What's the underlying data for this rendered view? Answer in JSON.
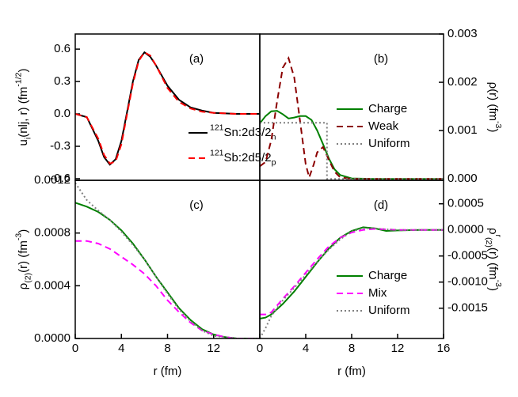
{
  "chart_data": [
    {
      "type": "line",
      "panel_label": "(a)",
      "axis_side": "left",
      "legend": "lower right",
      "xlim": [
        0,
        16
      ],
      "ylim": [
        -0.615,
        0.74
      ],
      "yticks": [
        0.6,
        0.3,
        {
          "value": 0,
          "label": "0.0"
        },
        -0.3,
        -0.6
      ],
      "ylabel": [
        {
          "text": "u"
        },
        {
          "text": "i",
          "script": "sub"
        },
        {
          "text": "(nlj, r) (fm"
        },
        {
          "text": "-1/2",
          "script": "sup"
        },
        {
          "text": ")"
        }
      ],
      "series": [
        {
          "name": [
            {
              "text": "121",
              "script": "sup"
            },
            {
              "text": "Sn:2d3/2"
            },
            {
              "text": "n",
              "script": "sub"
            }
          ],
          "color": "#000000",
          "dash": "solid",
          "x": [
            0,
            1,
            2,
            2.5,
            3,
            3.5,
            4,
            4.5,
            5,
            5.5,
            6,
            6.5,
            7,
            8,
            9,
            10,
            11,
            12,
            14,
            16
          ],
          "values": [
            0,
            -0.03,
            -0.25,
            -0.4,
            -0.47,
            -0.42,
            -0.25,
            0.02,
            0.3,
            0.5,
            0.57,
            0.53,
            0.45,
            0.26,
            0.13,
            0.06,
            0.03,
            0.01,
            0,
            0
          ]
        },
        {
          "name": [
            {
              "text": "121",
              "script": "sup"
            },
            {
              "text": "Sb:2d5/2"
            },
            {
              "text": "p",
              "script": "sub"
            }
          ],
          "color": "#ff0000",
          "dash": "dashed",
          "x": [
            0,
            1,
            2,
            2.5,
            3,
            3.5,
            4,
            4.5,
            5,
            5.5,
            6,
            6.5,
            7,
            8,
            9,
            10,
            11,
            12,
            14,
            16
          ],
          "values": [
            0,
            -0.03,
            -0.23,
            -0.38,
            -0.46,
            -0.44,
            -0.28,
            0,
            0.28,
            0.49,
            0.57,
            0.54,
            0.45,
            0.24,
            0.11,
            0.05,
            0.02,
            0.01,
            0,
            0
          ]
        }
      ]
    },
    {
      "type": "line",
      "panel_label": "(b)",
      "axis_side": "right",
      "legend": "center right",
      "xlim": [
        0,
        16
      ],
      "ylim": [
        -3e-05,
        0.003
      ],
      "yticks": [
        {
          "value": 0,
          "label": "0.000"
        },
        {
          "value": 0.001,
          "label": "0.001"
        },
        {
          "value": 0.002,
          "label": "0.002"
        },
        {
          "value": 0.003,
          "label": "0.003"
        }
      ],
      "ylabel": [
        {
          "text": "ρ(r) (fm"
        },
        {
          "text": "-3",
          "script": "sup"
        },
        {
          "text": ")"
        }
      ],
      "series": [
        {
          "name": "Charge",
          "color": "#008000",
          "dash": "solid",
          "x": [
            0,
            0.5,
            1,
            1.5,
            2,
            2.5,
            3,
            3.5,
            4,
            4.5,
            5,
            5.5,
            6,
            6.5,
            7,
            8,
            10,
            16
          ],
          "values": [
            0.00115,
            0.0013,
            0.0014,
            0.00141,
            0.00134,
            0.00125,
            0.00127,
            0.0013,
            0.0013,
            0.00122,
            0.001,
            0.00072,
            0.00043,
            0.0002,
            8e-05,
            1e-05,
            0,
            0
          ]
        },
        {
          "name": "Weak",
          "color": "#8b0000",
          "dash": "dashed",
          "x": [
            0,
            0.5,
            1,
            1.5,
            2,
            2.5,
            3,
            3.5,
            4,
            4.3,
            4.7,
            5,
            5.5,
            6,
            6.5,
            7,
            8,
            16
          ],
          "values": [
            0.00026,
            0.00035,
            0.0008,
            0.0016,
            0.0023,
            0.0025,
            0.0021,
            0.0012,
            0.0003,
            3e-05,
            0.0003,
            0.00055,
            0.00066,
            0.0004,
            0.00015,
            3e-05,
            0,
            0
          ]
        },
        {
          "name": "Uniform",
          "color": "#808080",
          "dash": "dotted",
          "x": [
            0,
            5.85,
            5.85,
            16
          ],
          "values": [
            0.00116,
            0.00116,
            0,
            0
          ]
        }
      ]
    },
    {
      "type": "line",
      "panel_label": "(c)",
      "axis_side": "left",
      "xlabel": "r (fm)",
      "xlim": [
        0,
        16
      ],
      "xticks": [
        0,
        4,
        8,
        12
      ],
      "ylim": [
        0,
        0.0012
      ],
      "yticks": [
        {
          "value": 0,
          "label": "0.0000"
        },
        {
          "value": 0.0004,
          "label": "0.0004"
        },
        {
          "value": 0.0008,
          "label": "0.0008"
        },
        {
          "value": 0.0012,
          "label": "0.0012"
        }
      ],
      "ylabel": [
        {
          "text": "ρ"
        },
        {
          "text": "(2)",
          "script": "sub"
        },
        {
          "text": "(r) (fm"
        },
        {
          "text": "-3",
          "script": "sup"
        },
        {
          "text": ")"
        }
      ],
      "series": [
        {
          "color": "#008000",
          "dash": "solid",
          "x": [
            0,
            1,
            2,
            3,
            4,
            5,
            6,
            7,
            8,
            9,
            10,
            11,
            12,
            13,
            14,
            16
          ],
          "values": [
            0.00103,
            0.001,
            0.00096,
            0.0009,
            0.00082,
            0.00072,
            0.0006,
            0.00047,
            0.00035,
            0.00023,
            0.00014,
            7e-05,
            3e-05,
            1e-05,
            0,
            0
          ]
        },
        {
          "color": "#ff00ff",
          "dash": "dashed",
          "x": [
            0,
            1,
            2,
            3,
            4,
            5,
            6,
            7,
            8,
            9,
            10,
            11,
            12,
            13,
            14,
            16
          ],
          "values": [
            0.00074,
            0.00074,
            0.00072,
            0.00068,
            0.00062,
            0.00056,
            0.00049,
            0.0004,
            0.00029,
            0.0002,
            0.00012,
            6e-05,
            3e-05,
            1e-05,
            0,
            0
          ]
        },
        {
          "color": "#808080",
          "dash": "dotted",
          "x": [
            0,
            1,
            2,
            3,
            4,
            5,
            6,
            7,
            8,
            9,
            10,
            11,
            12,
            13,
            14,
            16
          ],
          "values": [
            0.00118,
            0.00105,
            0.00097,
            0.0009,
            0.00081,
            0.00071,
            0.0006,
            0.00047,
            0.00034,
            0.00022,
            0.00013,
            6e-05,
            2e-05,
            1e-05,
            0,
            0
          ]
        }
      ]
    },
    {
      "type": "line",
      "panel_label": "(d)",
      "axis_side": "right",
      "legend": "lower right",
      "xlabel": "r (fm)",
      "xlim": [
        0,
        16
      ],
      "xticks": [
        0,
        4,
        8,
        12,
        16
      ],
      "ylim": [
        -0.00208,
        0.00095
      ],
      "yticks": [
        {
          "value": 0.0005,
          "label": "0.0005"
        },
        {
          "value": 0,
          "label": "0.0000"
        },
        {
          "value": -0.0005,
          "label": "-0.0005"
        },
        {
          "value": -0.001,
          "label": "-0.0010"
        },
        {
          "value": -0.0015,
          "label": "-0.0015"
        }
      ],
      "ylabel": [
        {
          "text": "ρ"
        },
        {
          "text": "r",
          "script": "sup"
        },
        {
          "text": "(2)",
          "script": "sub"
        },
        {
          "text": "(r) (fm"
        },
        {
          "text": "-3",
          "script": "sup"
        },
        {
          "text": ")"
        }
      ],
      "series": [
        {
          "name": "Charge",
          "color": "#008000",
          "dash": "solid",
          "x": [
            0,
            0.5,
            1,
            2,
            3,
            4,
            5,
            6,
            7,
            8,
            9,
            10,
            11,
            12,
            14,
            16
          ],
          "values": [
            -0.0017,
            -0.00168,
            -0.00162,
            -0.00142,
            -0.00118,
            -0.0009,
            -0.00062,
            -0.00036,
            -0.00015,
            -2e-05,
            5e-05,
            3e-05,
            -2e-05,
            -1e-05,
            0,
            0
          ]
        },
        {
          "name": "Mix",
          "color": "#ff00ff",
          "dash": "dashed",
          "x": [
            0,
            0.5,
            1,
            2,
            3,
            4,
            5,
            6,
            7,
            8,
            9,
            10,
            11,
            12,
            14,
            16
          ],
          "values": [
            -0.00162,
            -0.00162,
            -0.00158,
            -0.00132,
            -0.00108,
            -0.00082,
            -0.00056,
            -0.00032,
            -0.00015,
            -5e-05,
            0,
            2e-05,
            1e-05,
            0,
            0,
            0
          ]
        },
        {
          "name": "Uniform",
          "color": "#808080",
          "dash": "dotted",
          "x": [
            0,
            0.5,
            1,
            2,
            3,
            4,
            5,
            6,
            7,
            8,
            9,
            10,
            11,
            12,
            14,
            16
          ],
          "values": [
            -0.00208,
            -0.00188,
            -0.00165,
            -0.00135,
            -0.00111,
            -0.00086,
            -0.00061,
            -0.00038,
            -0.00018,
            -3e-05,
            3e-05,
            3e-05,
            1e-05,
            0,
            0,
            0
          ]
        }
      ]
    }
  ]
}
